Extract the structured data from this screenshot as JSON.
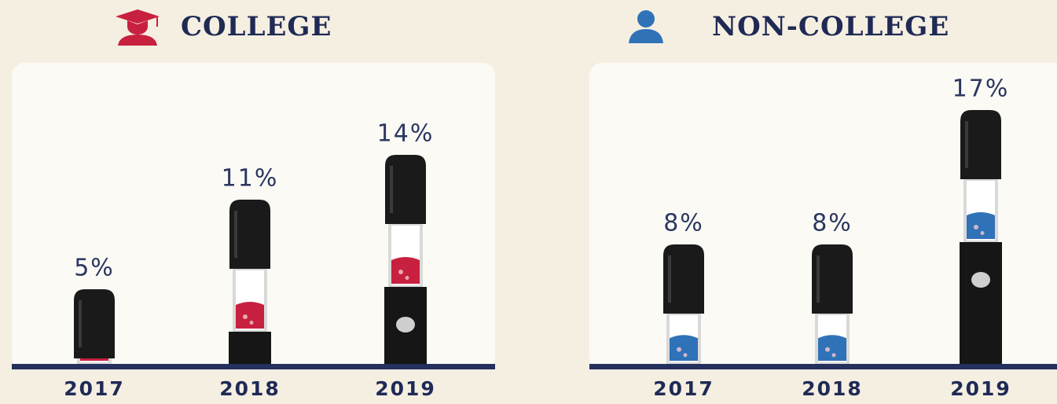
{
  "chart_data": [
    {
      "type": "bar",
      "title": "COLLEGE",
      "categories": [
        "2017",
        "2018",
        "2019"
      ],
      "values": [
        5,
        11,
        14
      ],
      "value_labels": [
        "5%",
        "11%",
        "14%"
      ],
      "color": "#c8203f"
    },
    {
      "type": "bar",
      "title": "NON-COLLEGE",
      "categories": [
        "2017",
        "2018",
        "2019"
      ],
      "values": [
        8,
        8,
        17
      ],
      "value_labels": [
        "8%",
        "8%",
        "17%"
      ],
      "color": "#2f72b8"
    }
  ]
}
